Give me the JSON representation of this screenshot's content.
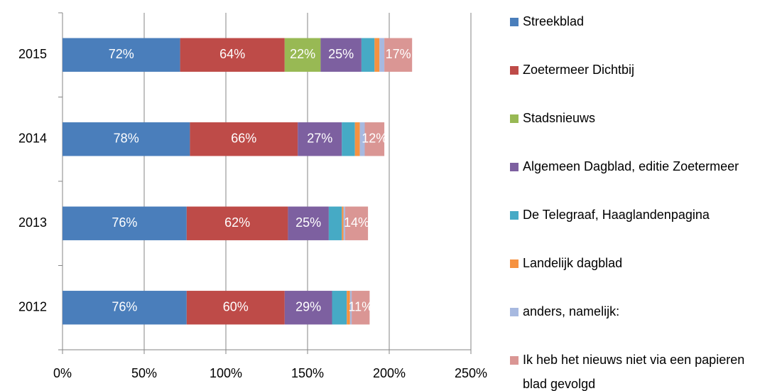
{
  "chart_data": {
    "type": "bar",
    "orientation": "horizontal",
    "stacked": true,
    "categories": [
      "2012",
      "2013",
      "2014",
      "2015"
    ],
    "series": [
      {
        "name": "Streekblad",
        "color": "#4a7ebb",
        "values": [
          76,
          76,
          78,
          72
        ],
        "value_labels": [
          "76%",
          "76%",
          "78%",
          "72%"
        ]
      },
      {
        "name": "Zoetermeer Dichtbij",
        "color": "#be4b48",
        "values": [
          60,
          62,
          66,
          64
        ],
        "value_labels": [
          "60%",
          "62%",
          "66%",
          "64%"
        ]
      },
      {
        "name": "Stadsnieuws",
        "color": "#98b954",
        "values": [
          null,
          null,
          null,
          22
        ],
        "value_labels": [
          null,
          null,
          null,
          "22%"
        ]
      },
      {
        "name": "Algemeen Dagblad, editie Zoetermeer",
        "color": "#7d60a0",
        "values": [
          29,
          25,
          27,
          25
        ],
        "value_labels": [
          "29%",
          "25%",
          "27%",
          "25%"
        ]
      },
      {
        "name": "De Telegraaf, Haaglandenpagina",
        "color": "#46aac5",
        "values": [
          9,
          8,
          8,
          8
        ],
        "value_labels": [
          null,
          null,
          null,
          null
        ]
      },
      {
        "name": "Landelijk dagblad",
        "color": "#f69240",
        "values": [
          2,
          1,
          3,
          3
        ],
        "value_labels": [
          null,
          null,
          null,
          null
        ]
      },
      {
        "name": "anders, namelijk:",
        "color": "#a7b9e0",
        "values": [
          1,
          1,
          3,
          3
        ],
        "value_labels": [
          null,
          null,
          null,
          null
        ]
      },
      {
        "name": "Ik heb het nieuws niet via een papieren blad gevolgd",
        "color": "#da9694",
        "values": [
          11,
          14,
          12,
          17
        ],
        "value_labels": [
          "11%",
          "14%",
          "12%",
          "17%"
        ]
      }
    ],
    "xlim": [
      0,
      250
    ],
    "xticks": [
      {
        "value": 0,
        "label": "0%"
      },
      {
        "value": 50,
        "label": "50%"
      },
      {
        "value": 100,
        "label": "100%"
      },
      {
        "value": 150,
        "label": "150%"
      },
      {
        "value": 200,
        "label": "200%"
      },
      {
        "value": 250,
        "label": "250%"
      }
    ],
    "grid": true,
    "legend": "right"
  }
}
